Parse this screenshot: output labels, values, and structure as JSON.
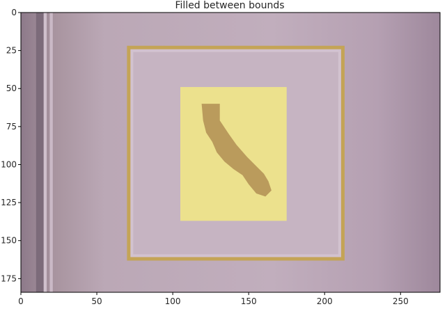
{
  "chart_data": {
    "type": "image",
    "title": "Filled between bounds",
    "xlim": [
      0,
      276
    ],
    "ylim": [
      184,
      0
    ],
    "y_inverted": true,
    "xticks": [
      0,
      50,
      100,
      150,
      200,
      250
    ],
    "yticks": [
      0,
      25,
      50,
      75,
      100,
      125,
      150,
      175
    ],
    "grid": false,
    "fill_region": {
      "x_range": [
        105,
        175
      ],
      "y_range": [
        49,
        137
      ],
      "color": "#eee48a"
    },
    "frame": {
      "x_range": [
        71,
        212
      ],
      "y_range": [
        23,
        162
      ],
      "color": "#c4a456"
    },
    "colors": {
      "wall": "#b9a5b5",
      "mat": "#c6b4c2",
      "frame": "#c4a456",
      "fill": "#eee48a",
      "map": "#b59457"
    }
  }
}
